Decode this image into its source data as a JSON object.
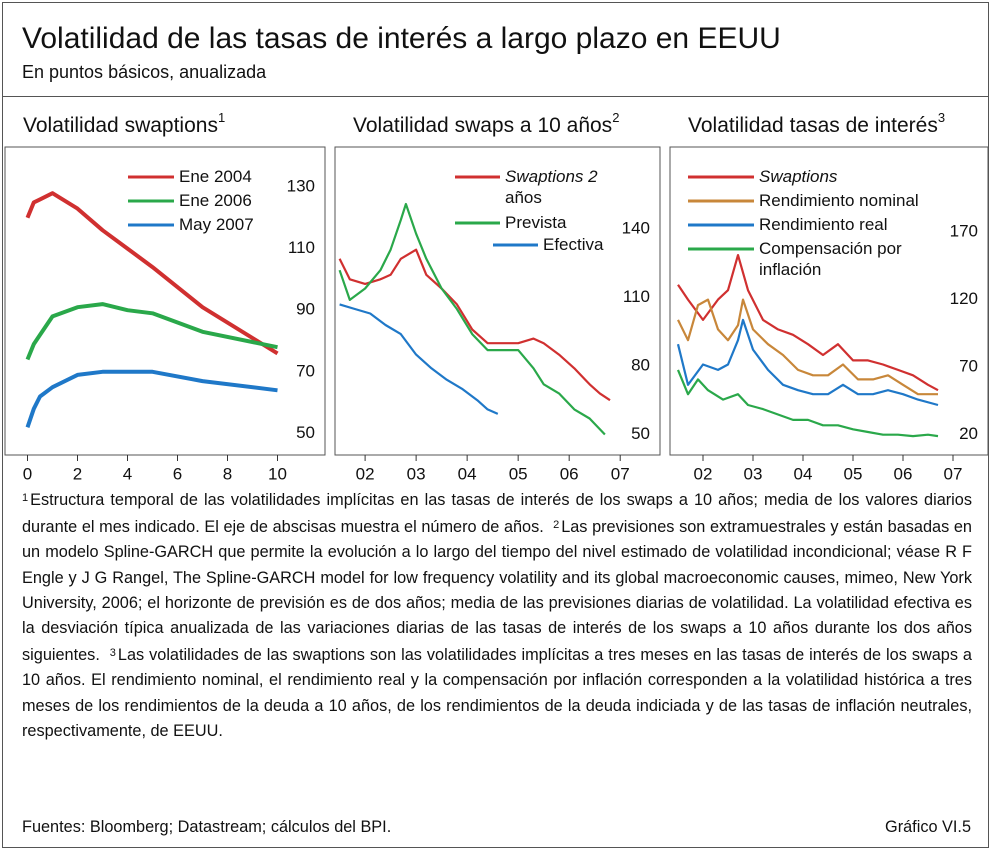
{
  "header": {
    "title": "Volatilidad de las tasas de interés a largo plazo en EEUU",
    "subtitle": "En puntos básicos, anualizada"
  },
  "chart_data": [
    {
      "type": "line",
      "title": "Volatilidad swaptions",
      "note_ref": "1",
      "xlim": [
        -0.9,
        11.9
      ],
      "xticks": [
        0,
        2,
        4,
        6,
        8,
        10
      ],
      "ylim": [
        43,
        143
      ],
      "yticks": [
        50,
        70,
        90,
        110,
        130
      ],
      "series": [
        {
          "name": "Ene 2004",
          "color": "#d03030",
          "x": [
            0,
            0.25,
            0.5,
            1,
            2,
            3,
            4,
            5,
            7,
            10
          ],
          "values": [
            120,
            125,
            126,
            128,
            123,
            116,
            110,
            104,
            91,
            76
          ]
        },
        {
          "name": "Ene 2006",
          "color": "#2aa84a",
          "x": [
            0,
            0.25,
            0.5,
            1,
            2,
            3,
            4,
            5,
            7,
            10
          ],
          "values": [
            74,
            79,
            82,
            88,
            91,
            92,
            90,
            89,
            83,
            78
          ]
        },
        {
          "name": "May 2007",
          "color": "#1f78c8",
          "x": [
            0,
            0.25,
            0.5,
            1,
            2,
            3,
            4,
            5,
            7,
            10
          ],
          "values": [
            52,
            58,
            62,
            65,
            69,
            70,
            70,
            70,
            67,
            64
          ]
        }
      ]
    },
    {
      "type": "line",
      "title": "Volatilidad swaps a 10 años",
      "note_ref": "2",
      "xlim": [
        2001.91,
        2008.28
      ],
      "xticks": [
        {
          "value": 2002.5,
          "label": "02"
        },
        {
          "value": 2003.5,
          "label": "03"
        },
        {
          "value": 2004.5,
          "label": "04"
        },
        {
          "value": 2005.5,
          "label": "05"
        },
        {
          "value": 2006.5,
          "label": "06"
        },
        {
          "value": 2007.5,
          "label": "07"
        }
      ],
      "ylim": [
        41,
        176
      ],
      "yticks": [
        50,
        80,
        110,
        140
      ],
      "series": [
        {
          "name": "Swaptions 2 años",
          "color": "#d03030",
          "x": [
            2002.0,
            2002.2,
            2002.5,
            2002.8,
            2003.0,
            2003.2,
            2003.5,
            2003.7,
            2004.0,
            2004.3,
            2004.6,
            2004.9,
            2005.2,
            2005.5,
            2005.8,
            2006.0,
            2006.3,
            2006.6,
            2006.9,
            2007.1,
            2007.3
          ],
          "values": [
            127,
            118,
            116,
            118,
            120,
            127,
            131,
            120,
            114,
            107,
            96,
            90,
            90,
            90,
            92,
            90,
            85,
            79,
            72,
            68,
            65
          ]
        },
        {
          "name": "Prevista",
          "color": "#2aa84a",
          "x": [
            2002.0,
            2002.2,
            2002.5,
            2002.8,
            2003.0,
            2003.2,
            2003.3,
            2003.5,
            2003.7,
            2004.0,
            2004.3,
            2004.6,
            2004.9,
            2005.2,
            2005.5,
            2005.8,
            2006.0,
            2006.3,
            2006.6,
            2006.9,
            2007.2
          ],
          "values": [
            122,
            109,
            114,
            122,
            131,
            144,
            151,
            138,
            127,
            114,
            105,
            94,
            87,
            87,
            87,
            79,
            72,
            68,
            61,
            57,
            50
          ]
        },
        {
          "name": "Efectiva",
          "color": "#1f78c8",
          "x": [
            2002.0,
            2002.3,
            2002.6,
            2002.9,
            2003.2,
            2003.5,
            2003.8,
            2004.1,
            2004.4,
            2004.7,
            2004.9,
            2005.1
          ],
          "values": [
            107,
            105,
            103,
            98,
            94,
            85,
            79,
            74,
            70,
            65,
            61,
            59
          ]
        }
      ]
    },
    {
      "type": "line",
      "title": "Volatilidad tasas de interés",
      "note_ref": "3",
      "xlim": [
        2001.84,
        2008.2
      ],
      "xticks": [
        {
          "value": 2002.5,
          "label": "02"
        },
        {
          "value": 2003.5,
          "label": "03"
        },
        {
          "value": 2004.5,
          "label": "04"
        },
        {
          "value": 2005.5,
          "label": "05"
        },
        {
          "value": 2006.5,
          "label": "06"
        },
        {
          "value": 2007.5,
          "label": "07"
        }
      ],
      "ylim": [
        5,
        233
      ],
      "yticks": [
        20,
        70,
        120,
        170
      ],
      "series": [
        {
          "name": "Swaptions",
          "color": "#d03030",
          "x": [
            2002.0,
            2002.2,
            2002.5,
            2002.8,
            2003.0,
            2003.2,
            2003.4,
            2003.7,
            2004.0,
            2004.3,
            2004.6,
            2004.9,
            2005.2,
            2005.5,
            2005.8,
            2006.1,
            2006.4,
            2006.7,
            2007.0,
            2007.2
          ],
          "values": [
            131,
            120,
            105,
            120,
            127,
            153,
            127,
            105,
            98,
            94,
            87,
            79,
            87,
            75,
            75,
            72,
            68,
            64,
            57,
            53
          ]
        },
        {
          "name": "Rendimiento nominal",
          "color": "#c8873a",
          "x": [
            2002.0,
            2002.2,
            2002.4,
            2002.6,
            2002.8,
            2003.0,
            2003.2,
            2003.3,
            2003.5,
            2003.8,
            2004.1,
            2004.4,
            2004.7,
            2005.0,
            2005.3,
            2005.6,
            2005.9,
            2006.2,
            2006.5,
            2006.8,
            2007.2
          ],
          "values": [
            105,
            90,
            116,
            120,
            98,
            90,
            101,
            120,
            98,
            87,
            79,
            68,
            64,
            64,
            72,
            61,
            61,
            64,
            57,
            50,
            50
          ]
        },
        {
          "name": "Rendimiento real",
          "color": "#1f78c8",
          "x": [
            2002.0,
            2002.2,
            2002.5,
            2002.8,
            2003.0,
            2003.2,
            2003.3,
            2003.5,
            2003.8,
            2004.1,
            2004.4,
            2004.7,
            2005.0,
            2005.3,
            2005.6,
            2005.9,
            2006.2,
            2006.5,
            2006.8,
            2007.2
          ],
          "values": [
            87,
            57,
            72,
            68,
            72,
            90,
            105,
            83,
            68,
            57,
            53,
            50,
            50,
            57,
            50,
            50,
            53,
            50,
            46,
            42
          ]
        },
        {
          "name": "Compensación por inflación",
          "color": "#2aa84a",
          "x": [
            2002.0,
            2002.2,
            2002.4,
            2002.6,
            2002.9,
            2003.2,
            2003.4,
            2003.7,
            2004.0,
            2004.3,
            2004.6,
            2004.9,
            2005.2,
            2005.5,
            2005.8,
            2006.1,
            2006.4,
            2006.7,
            2007.0,
            2007.2
          ],
          "values": [
            68,
            50,
            61,
            53,
            46,
            50,
            42,
            39,
            35,
            31,
            31,
            27,
            27,
            24,
            22,
            20,
            20,
            19,
            20,
            19
          ]
        }
      ]
    }
  ],
  "notes": [
    {
      "ref": "1",
      "text": "Estructura temporal de las volatilidades implícitas en las tasas de interés de los swaps a 10 años; media de los valores diarios durante el mes indicado. El eje de abscisas muestra el número de años."
    },
    {
      "ref": "2",
      "text": "Las previsiones son extramuestrales y están basadas en un modelo Spline-GARCH que permite la evolución a lo largo del tiempo del nivel estimado de volatilidad incondicional; véase R F Engle y J G Rangel, The Spline-GARCH model for low frequency volatility and its global macroeconomic causes, mimeo, New York University, 2006; el horizonte de previsión es de dos años; media de las previsiones diarias de volatilidad. La volatilidad efectiva es la desviación típica anualizada de las variaciones diarias de las tasas de interés de los swaps a 10 años durante los dos años siguientes."
    },
    {
      "ref": "3",
      "text": "Las volatilidades de las swaptions son las volatilidades implícitas a tres meses en las tasas de interés de los swaps a 10 años. El rendimiento nominal, el rendimiento real y la compensación por inflación corresponden a la volatilidad histórica a tres meses de los rendimientos de la deuda a 10 años, de los rendimientos de la deuda indiciada y de las tasas de inflación neutrales, respectivamente, de EEUU."
    }
  ],
  "footer": {
    "source": "Fuentes: Bloomberg; Datastream; cálculos del BPI.",
    "code": "Gráfico VI.5"
  }
}
